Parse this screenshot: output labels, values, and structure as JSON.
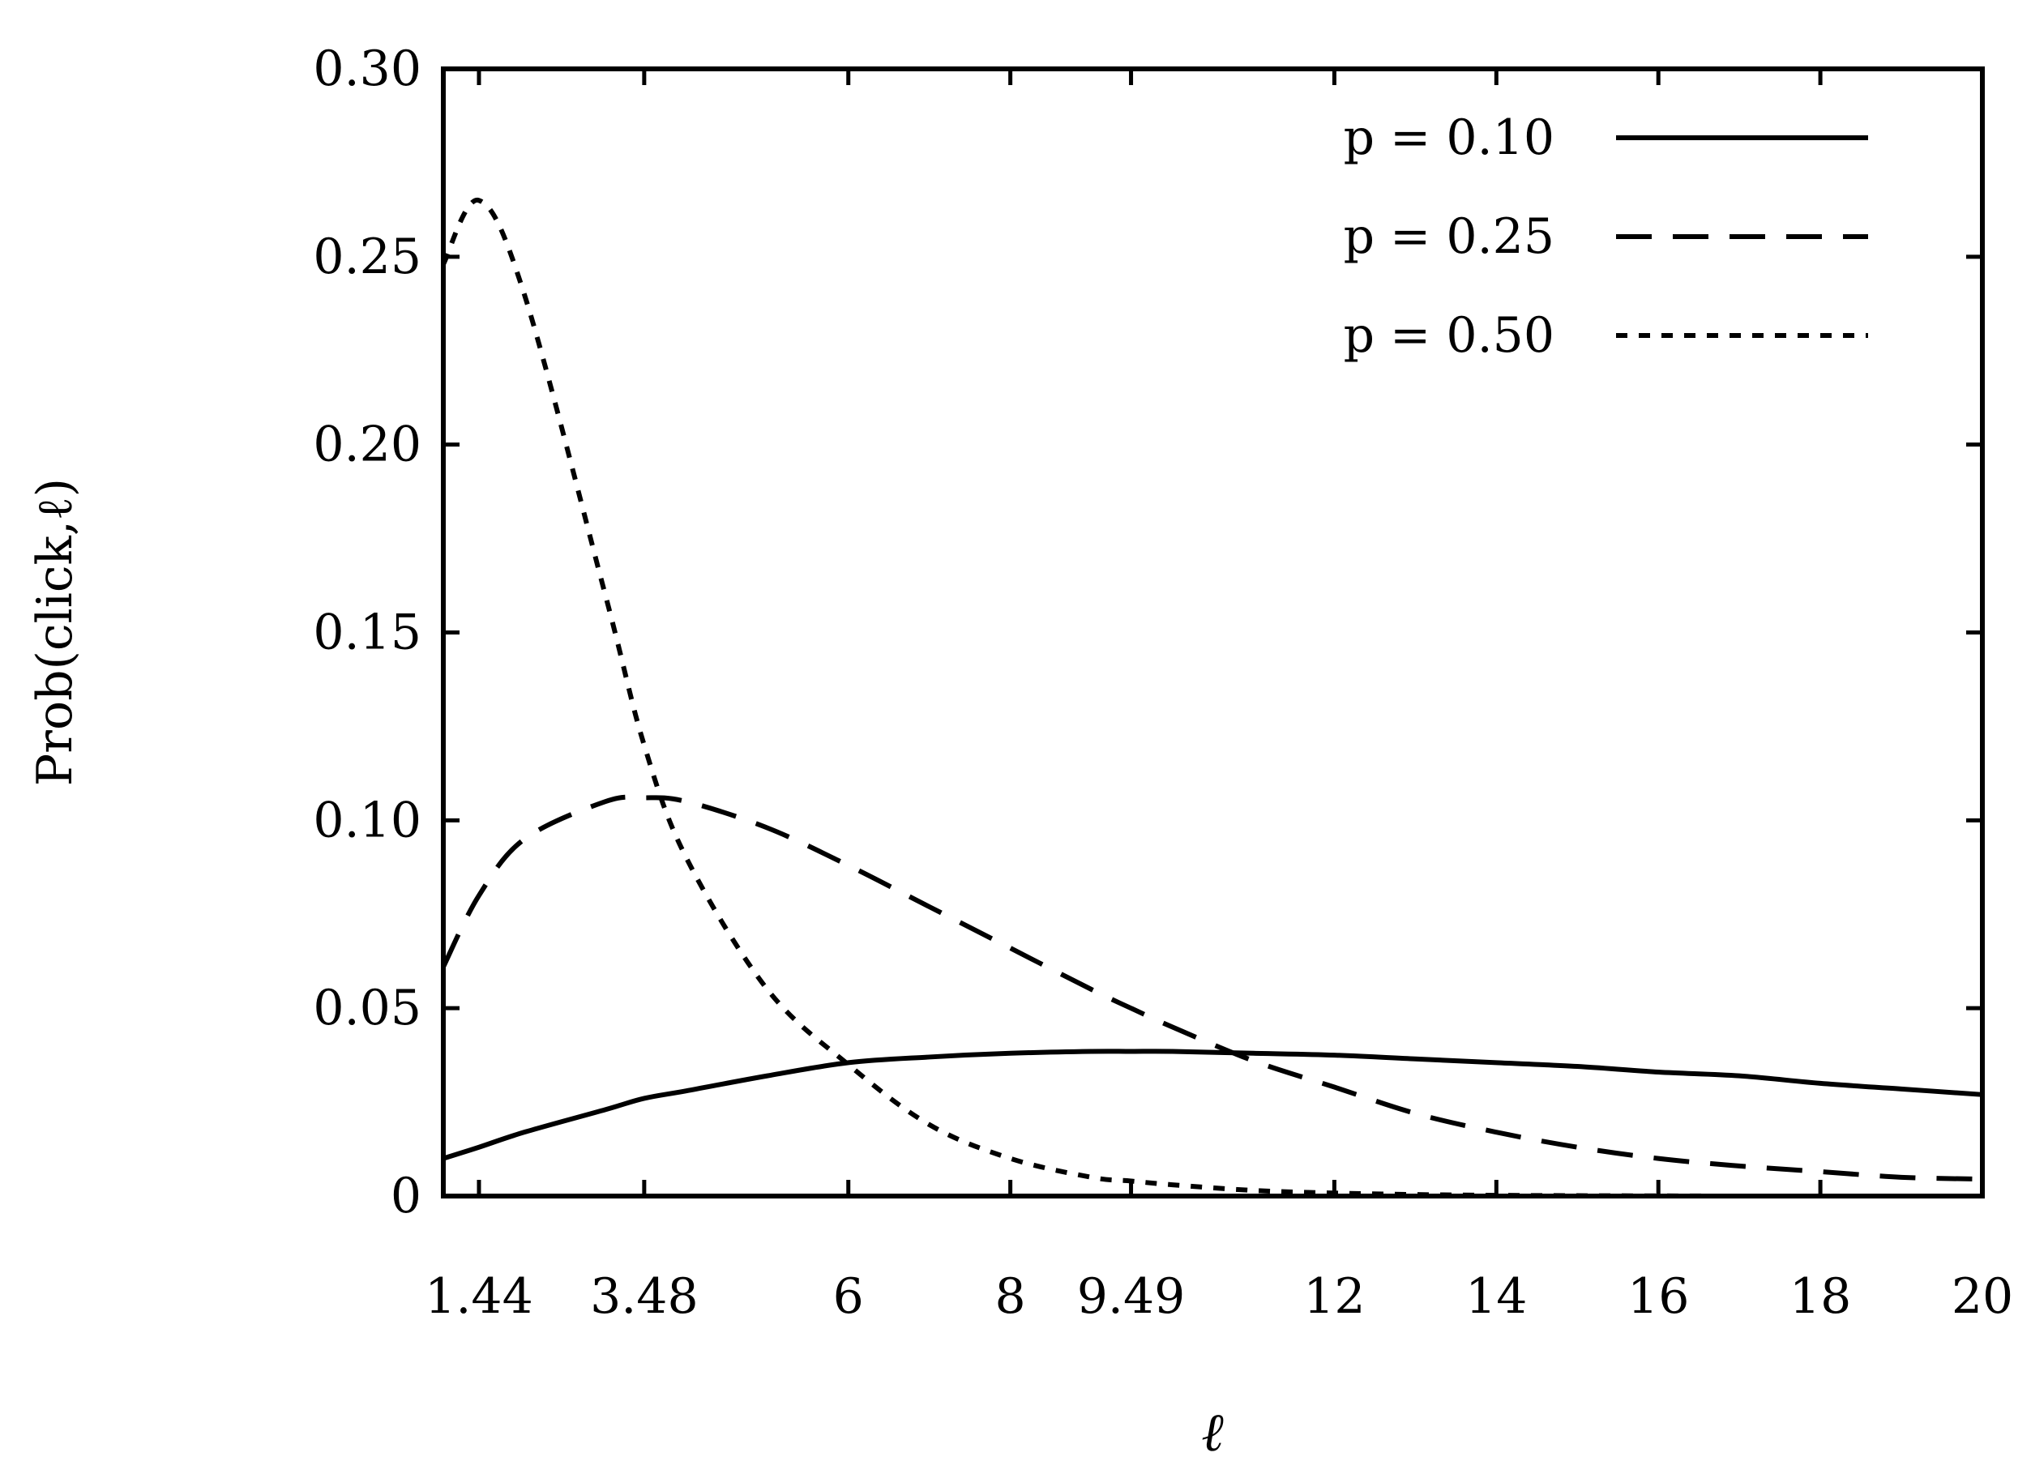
{
  "chart_data": {
    "type": "line",
    "title": "",
    "xlabel": "ℓ",
    "ylabel": "Prob(click,ℓ)",
    "xlim": [
      1.0,
      20.0
    ],
    "ylim": [
      0,
      0.3
    ],
    "x_ticks": [
      1.44,
      3.48,
      6,
      8,
      9.49,
      12,
      14,
      16,
      18,
      20
    ],
    "x_tick_labels": [
      "1.44",
      "3.48",
      "6",
      "8",
      "9.49",
      "12",
      "14",
      "16",
      "18",
      "20"
    ],
    "y_ticks": [
      0,
      0.05,
      0.1,
      0.15,
      0.2,
      0.25,
      0.3
    ],
    "y_tick_labels": [
      "0",
      "0.05",
      "0.10",
      "0.15",
      "0.20",
      "0.25",
      "0.30"
    ],
    "legend_position": "top-right",
    "grid": false,
    "x": [
      1.0,
      1.44,
      2.0,
      3.0,
      3.48,
      4.0,
      5.0,
      6.0,
      7.0,
      8.0,
      9.0,
      9.49,
      10.0,
      11.0,
      12.0,
      13.0,
      14.0,
      15.0,
      16.0,
      17.0,
      18.0,
      19.0,
      20.0
    ],
    "series": [
      {
        "name": "p = 0.10",
        "style": "solid",
        "values": [
          0.01,
          0.013,
          0.017,
          0.023,
          0.026,
          0.028,
          0.032,
          0.0355,
          0.037,
          0.038,
          0.0385,
          0.0385,
          0.0385,
          0.038,
          0.0375,
          0.0365,
          0.0355,
          0.0345,
          0.033,
          0.032,
          0.03,
          0.0285,
          0.027
        ]
      },
      {
        "name": "p = 0.25",
        "style": "dashed",
        "values": [
          0.061,
          0.08,
          0.095,
          0.105,
          0.106,
          0.105,
          0.098,
          0.088,
          0.077,
          0.066,
          0.055,
          0.05,
          0.045,
          0.036,
          0.029,
          0.022,
          0.017,
          0.013,
          0.01,
          0.008,
          0.0065,
          0.005,
          0.0045
        ]
      },
      {
        "name": "p = 0.50",
        "style": "dotted",
        "values": [
          0.248,
          0.265,
          0.24,
          0.16,
          0.12,
          0.09,
          0.055,
          0.035,
          0.019,
          0.01,
          0.005,
          0.004,
          0.003,
          0.0015,
          0.0008,
          0.0004,
          0.0002,
          0.0001,
          5e-05,
          0.0,
          0.0,
          0.0,
          0.0
        ]
      }
    ]
  }
}
